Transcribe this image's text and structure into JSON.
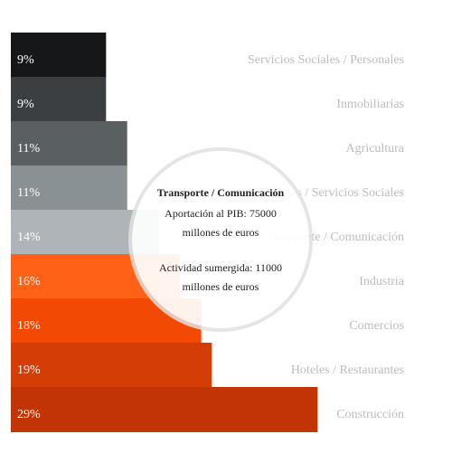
{
  "chart_data": {
    "type": "bar",
    "orientation": "horizontal",
    "categories": [
      "Servicios Sociales / Personales",
      "Inmobiliarias",
      "Agricultura",
      "Sociales / Servicios Sociales",
      "Transporte / Comunicación",
      "Industria",
      "Comercios",
      "Hoteles / Restaurantes",
      "Construcción"
    ],
    "values": [
      9,
      9,
      11,
      11,
      14,
      16,
      18,
      19,
      29
    ],
    "value_labels": [
      "9%",
      "9%",
      "11%",
      "11%",
      "14%",
      "16%",
      "18%",
      "19%",
      "29%"
    ],
    "colors": [
      "#161718",
      "#3b3f42",
      "#5a6062",
      "#8a9195",
      "#aeb4b7",
      "#ff6217",
      "#f24a05",
      "#d53d06",
      "#c23406"
    ],
    "grid": false,
    "legend": "none"
  },
  "tooltip": {
    "title": "Transporte / Comunicación",
    "line1": "Aportación al PIB: 75000",
    "line2": "millones de euros",
    "line3": "Actividad sumergida: 11000",
    "line4": "millones de euros"
  },
  "colors": {
    "category_label": "#bcbcbc",
    "value_label": "#ffffff",
    "tooltip_text": "#222222"
  }
}
